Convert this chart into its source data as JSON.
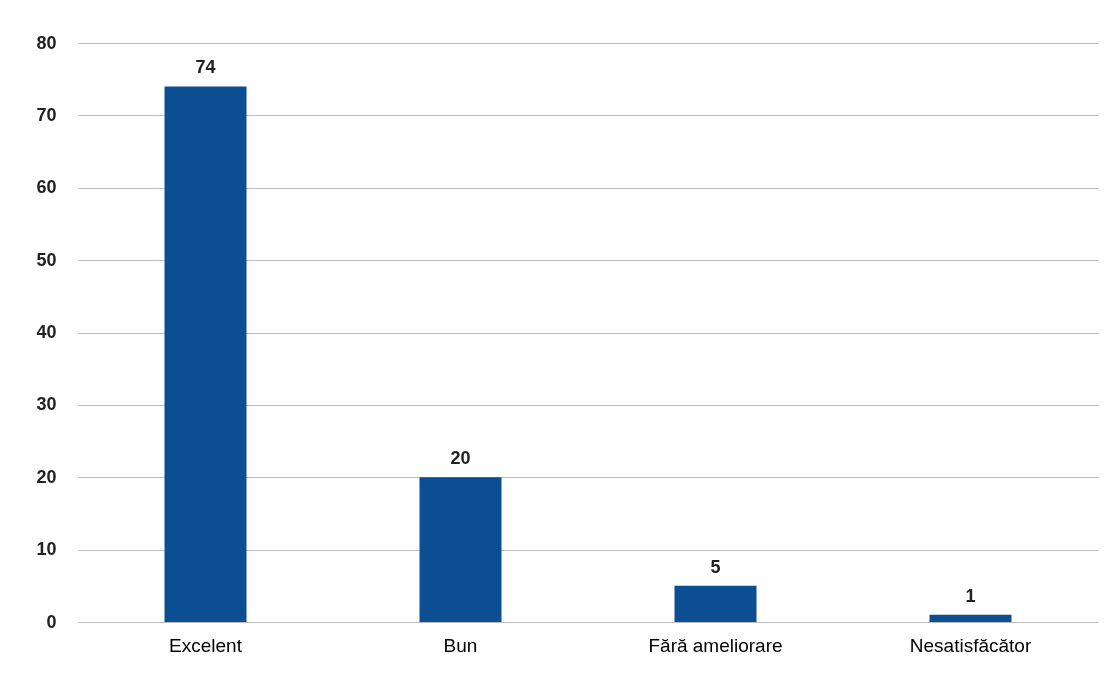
{
  "chart_data": {
    "type": "bar",
    "categories": [
      "Excelent",
      "Bun",
      "Fără ameliorare",
      "Nesatisfăcător"
    ],
    "values": [
      74,
      20,
      5,
      1
    ],
    "color": "#0b4e92",
    "ylim": [
      0,
      80
    ],
    "yticks": [
      0,
      10,
      20,
      30,
      40,
      50,
      60,
      70,
      80
    ],
    "grid": "y",
    "data_labels": true
  }
}
